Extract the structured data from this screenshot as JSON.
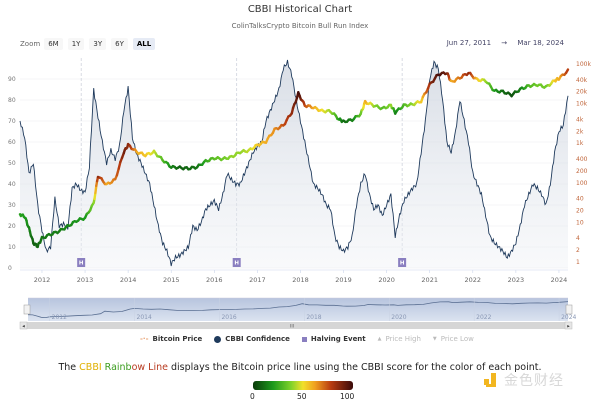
{
  "header": {
    "title": "CBBI Historical Chart",
    "subtitle": "ColinTalksCrypto Bitcoin Bull Run Index"
  },
  "zoom": {
    "label": "Zoom",
    "buttons": [
      "6M",
      "1Y",
      "3Y",
      "6Y",
      "ALL"
    ],
    "active": "ALL"
  },
  "range": {
    "from": "Jun 27, 2011",
    "arrow": "→",
    "to": "Mar 18, 2024"
  },
  "legend": {
    "items": [
      {
        "label": "Bitcoin Price",
        "symbol": "line-dash",
        "color": "#e8a070",
        "dim": false
      },
      {
        "label": "CBBI Confidence",
        "symbol": "circle",
        "color": "#1f3a5c",
        "dim": false
      },
      {
        "label": "Halving Event",
        "symbol": "square",
        "color": "#8a7fc0",
        "dim": false
      },
      {
        "label": "Price High",
        "symbol": "triangle-up",
        "color": "#cccccc",
        "dim": true
      },
      {
        "label": "Price Low",
        "symbol": "triangle-down",
        "color": "#cccccc",
        "dim": true
      }
    ]
  },
  "caption": {
    "prefix": "The ",
    "hl1": "CBBI ",
    "hl2": "Rainb",
    "hl3": "ow Line",
    "suffix": " displays the Bitcoin price line using the CBBI score for the color of each point."
  },
  "colorbar": {
    "ticks": [
      "0",
      "50",
      "100"
    ],
    "colors": [
      "#0a3a0a",
      "#1c9a1c",
      "#7fd22a",
      "#f2e02a",
      "#f0a020",
      "#b83b10",
      "#3a0a0a"
    ]
  },
  "watermark": {
    "text": "金色财经",
    "color": "#f2b620"
  },
  "navigator": {
    "labels": [
      "2012",
      "2014",
      "2016",
      "2018",
      "2020",
      "2022",
      "2024"
    ],
    "scroll_right_glyph": "III"
  },
  "chart_data": {
    "type": "line",
    "title": "CBBI Historical Chart",
    "subtitle": "ColinTalksCrypto Bitcoin Bull Run Index",
    "x_range": [
      2011.49,
      2024.21
    ],
    "x_ticks": [
      "2012",
      "2013",
      "2014",
      "2015",
      "2016",
      "2017",
      "2018",
      "2019",
      "2020",
      "2021",
      "2022",
      "2023",
      "2024"
    ],
    "y_left": {
      "label": "CBBI Confidence",
      "range": [
        0,
        100
      ],
      "ticks": [
        "0",
        "10",
        "20",
        "30",
        "40",
        "50",
        "60",
        "70",
        "80",
        "90"
      ]
    },
    "y_right": {
      "label": "Bitcoin Price",
      "scale": "log",
      "range": [
        1,
        100000
      ],
      "ticks": [
        "1",
        "2",
        "4",
        "10",
        "20",
        "40",
        "100",
        "200",
        "400",
        "1k",
        "2k",
        "4k",
        "10k",
        "20k",
        "40k",
        "100k"
      ],
      "tick_values": [
        1,
        2,
        4,
        10,
        20,
        40,
        100,
        200,
        400,
        1000,
        2000,
        4000,
        10000,
        20000,
        40000,
        100000
      ]
    },
    "halvings": [
      2012.91,
      2016.52,
      2020.36
    ],
    "halving_label": "H",
    "grid": true,
    "series": [
      {
        "name": "CBBI Confidence",
        "axis": "left",
        "color": "#1f3a5c",
        "x": [
          2011.49,
          2011.6,
          2011.7,
          2011.8,
          2011.9,
          2012.0,
          2012.1,
          2012.2,
          2012.3,
          2012.4,
          2012.5,
          2012.6,
          2012.7,
          2012.8,
          2012.9,
          2013.0,
          2013.1,
          2013.2,
          2013.3,
          2013.4,
          2013.5,
          2013.6,
          2013.7,
          2013.8,
          2013.9,
          2014.0,
          2014.1,
          2014.2,
          2014.3,
          2014.4,
          2014.5,
          2014.6,
          2014.7,
          2014.8,
          2014.9,
          2015.0,
          2015.1,
          2015.2,
          2015.3,
          2015.4,
          2015.5,
          2015.6,
          2015.7,
          2015.8,
          2015.9,
          2016.0,
          2016.1,
          2016.2,
          2016.3,
          2016.4,
          2016.5,
          2016.6,
          2016.7,
          2016.8,
          2016.9,
          2017.0,
          2017.1,
          2017.2,
          2017.3,
          2017.4,
          2017.5,
          2017.6,
          2017.7,
          2017.8,
          2017.9,
          2018.0,
          2018.1,
          2018.2,
          2018.3,
          2018.4,
          2018.5,
          2018.6,
          2018.7,
          2018.8,
          2018.9,
          2019.0,
          2019.1,
          2019.2,
          2019.3,
          2019.4,
          2019.5,
          2019.6,
          2019.7,
          2019.8,
          2019.9,
          2020.0,
          2020.1,
          2020.2,
          2020.3,
          2020.4,
          2020.5,
          2020.6,
          2020.7,
          2020.8,
          2020.9,
          2021.0,
          2021.1,
          2021.2,
          2021.3,
          2021.4,
          2021.5,
          2021.6,
          2021.7,
          2021.8,
          2021.9,
          2022.0,
          2022.1,
          2022.2,
          2022.3,
          2022.4,
          2022.5,
          2022.6,
          2022.7,
          2022.8,
          2022.9,
          2023.0,
          2023.1,
          2023.2,
          2023.3,
          2023.4,
          2023.5,
          2023.6,
          2023.7,
          2023.8,
          2023.9,
          2024.0,
          2024.1,
          2024.21
        ],
        "y": [
          70,
          62,
          45,
          50,
          30,
          18,
          8,
          10,
          33,
          20,
          21,
          19,
          38,
          40,
          37,
          36,
          48,
          85,
          72,
          60,
          50,
          56,
          52,
          58,
          75,
          86,
          62,
          54,
          50,
          45,
          40,
          30,
          20,
          12,
          8,
          2,
          5,
          6,
          8,
          10,
          20,
          18,
          22,
          28,
          30,
          32,
          28,
          35,
          45,
          42,
          40,
          40,
          45,
          50,
          55,
          58,
          60,
          70,
          75,
          80,
          85,
          95,
          98,
          92,
          80,
          70,
          60,
          50,
          40,
          38,
          35,
          30,
          28,
          15,
          10,
          8,
          10,
          15,
          30,
          40,
          45,
          35,
          28,
          30,
          25,
          30,
          35,
          15,
          25,
          32,
          35,
          38,
          40,
          55,
          70,
          90,
          98,
          95,
          80,
          60,
          55,
          65,
          80,
          70,
          60,
          45,
          40,
          35,
          25,
          15,
          12,
          10,
          8,
          5,
          8,
          12,
          20,
          30,
          35,
          40,
          38,
          35,
          30,
          40,
          55,
          65,
          68,
          82
        ]
      },
      {
        "name": "Bitcoin Price",
        "axis": "right",
        "colored_by": "CBBI Confidence",
        "x": [
          2011.49,
          2011.6,
          2011.7,
          2011.8,
          2011.9,
          2012.0,
          2012.2,
          2012.4,
          2012.6,
          2012.8,
          2013.0,
          2013.2,
          2013.3,
          2013.5,
          2013.7,
          2013.9,
          2014.0,
          2014.2,
          2014.4,
          2014.6,
          2014.8,
          2015.0,
          2015.2,
          2015.4,
          2015.6,
          2015.8,
          2016.0,
          2016.2,
          2016.4,
          2016.6,
          2016.8,
          2017.0,
          2017.2,
          2017.4,
          2017.6,
          2017.8,
          2017.95,
          2018.1,
          2018.3,
          2018.5,
          2018.7,
          2018.9,
          2019.0,
          2019.2,
          2019.4,
          2019.5,
          2019.7,
          2019.9,
          2020.1,
          2020.2,
          2020.4,
          2020.6,
          2020.8,
          2021.0,
          2021.2,
          2021.4,
          2021.5,
          2021.7,
          2021.9,
          2022.1,
          2022.3,
          2022.5,
          2022.7,
          2022.9,
          2023.1,
          2023.3,
          2023.5,
          2023.7,
          2023.9,
          2024.0,
          2024.21
        ],
        "y": [
          16,
          14,
          7,
          3,
          2.5,
          4,
          5,
          6,
          8,
          11,
          13,
          30,
          150,
          90,
          120,
          600,
          900,
          600,
          500,
          600,
          380,
          250,
          240,
          230,
          250,
          350,
          420,
          400,
          450,
          600,
          650,
          900,
          1100,
          2200,
          2800,
          6000,
          18000,
          9000,
          8000,
          6500,
          6400,
          4000,
          3500,
          3900,
          5500,
          11000,
          9000,
          7500,
          9000,
          6000,
          9000,
          9500,
          11500,
          30000,
          55000,
          60000,
          35000,
          45000,
          60000,
          40000,
          38000,
          21000,
          20000,
          16500,
          23000,
          28000,
          30000,
          26000,
          38000,
          43000,
          68000
        ],
        "cbbi": [
          22,
          20,
          15,
          8,
          10,
          12,
          14,
          14,
          16,
          19,
          20,
          40,
          85,
          60,
          70,
          90,
          85,
          60,
          55,
          45,
          30,
          15,
          8,
          10,
          12,
          25,
          32,
          35,
          40,
          40,
          45,
          55,
          60,
          65,
          75,
          85,
          98,
          75,
          60,
          50,
          40,
          20,
          10,
          15,
          35,
          60,
          40,
          30,
          40,
          15,
          30,
          40,
          55,
          85,
          98,
          90,
          60,
          70,
          85,
          55,
          40,
          20,
          10,
          5,
          15,
          30,
          35,
          35,
          55,
          60,
          82
        ]
      }
    ],
    "legend_position": "bottom-center"
  }
}
